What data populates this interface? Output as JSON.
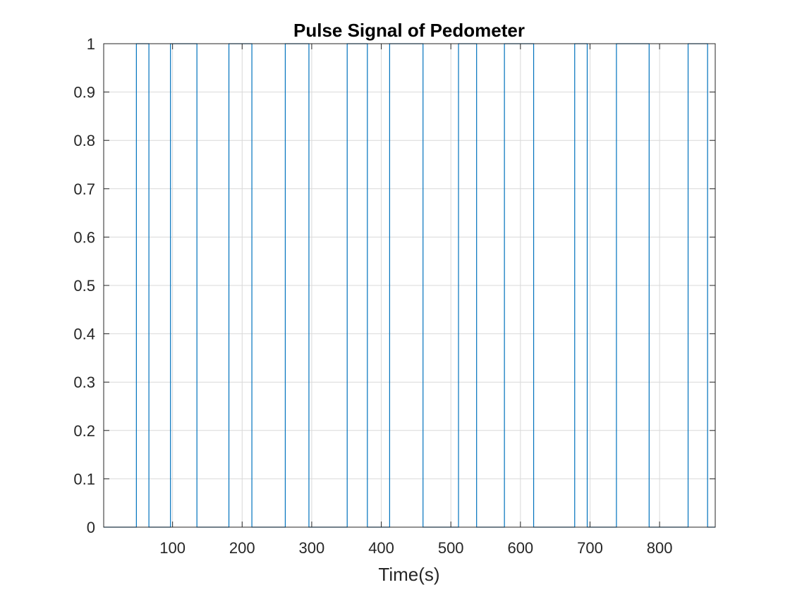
{
  "chart_data": {
    "type": "line",
    "title": "Pulse Signal of Pedometer",
    "xlabel": "Time(s)",
    "ylabel": "",
    "xlim": [
      1,
      880
    ],
    "ylim": [
      0,
      1
    ],
    "xticks": [
      100,
      200,
      300,
      400,
      500,
      600,
      700,
      800
    ],
    "xtick_labels": [
      "100",
      "200",
      "300",
      "400",
      "500",
      "600",
      "700",
      "800"
    ],
    "yticks": [
      0,
      0.1,
      0.2,
      0.3,
      0.4,
      0.5,
      0.6,
      0.7,
      0.8,
      0.9,
      1
    ],
    "ytick_labels": [
      "0",
      "0.1",
      "0.2",
      "0.3",
      "0.4",
      "0.5",
      "0.6",
      "0.7",
      "0.8",
      "0.9",
      "1"
    ],
    "grid": true,
    "line_color": "#0072BD",
    "grid_color": "#d9d9d9",
    "series": [
      {
        "pulses": [
          [
            48,
            66
          ],
          [
            97,
            135
          ],
          [
            181,
            214
          ],
          [
            262,
            296
          ],
          [
            351,
            380
          ],
          [
            412,
            460
          ],
          [
            511,
            537
          ],
          [
            577,
            619
          ],
          [
            678,
            696
          ],
          [
            738,
            785
          ],
          [
            841,
            869
          ]
        ]
      }
    ]
  }
}
